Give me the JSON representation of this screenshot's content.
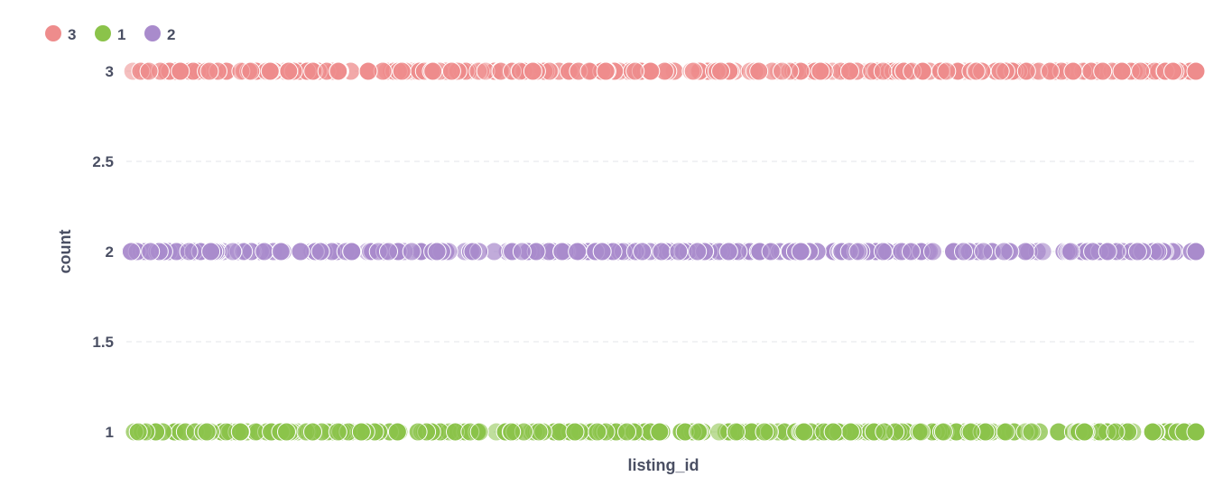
{
  "chart_data": {
    "type": "scatter",
    "xlabel": "listing_id",
    "ylabel": "count",
    "ylim": [
      1,
      3
    ],
    "yticks": [
      "1",
      "1.5",
      "2",
      "2.5",
      "3"
    ],
    "grid": true,
    "legend_position": "top-left",
    "series": [
      {
        "name": "3",
        "color": "#ee8c8c",
        "y": 3,
        "point_count": 300
      },
      {
        "name": "1",
        "color": "#8bc34a",
        "y": 1,
        "point_count": 300
      },
      {
        "name": "2",
        "color": "#a98bcc",
        "y": 2,
        "point_count": 300
      }
    ]
  }
}
